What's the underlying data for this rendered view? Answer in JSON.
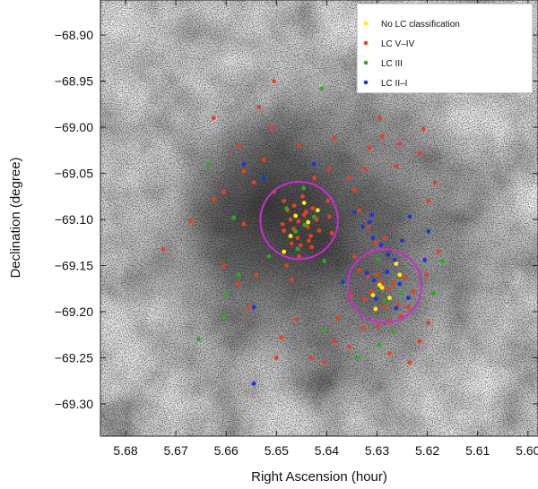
{
  "chart_data": {
    "type": "scatter",
    "xlabel": "Right Ascension (hour)",
    "ylabel": "Declination (degree)",
    "xlim": [
      5.685,
      5.598
    ],
    "ylim": [
      -69.335,
      -68.862
    ],
    "x_ticks": [
      5.68,
      5.67,
      5.66,
      5.65,
      5.64,
      5.63,
      5.62,
      5.61,
      5.6
    ],
    "x_tick_labels": [
      "5.68",
      "5.67",
      "5.66",
      "5.65",
      "5.64",
      "5.63",
      "5.62",
      "5.61",
      "5.60"
    ],
    "y_ticks": [
      -68.9,
      -68.95,
      -69.0,
      -69.05,
      -69.1,
      -69.15,
      -69.2,
      -69.25,
      -69.3
    ],
    "y_tick_labels": [
      "−68.90",
      "−68.95",
      "−69.00",
      "−69.05",
      "−69.10",
      "−69.15",
      "−69.20",
      "−69.25",
      "−69.30"
    ],
    "background": "greyscale nebula image",
    "legend_position": "top-right",
    "series": [
      {
        "name": "No LC classification",
        "color": "#ffee00",
        "points": [
          [
            5.6445,
            -69.082
          ],
          [
            5.6462,
            -69.096
          ],
          [
            5.6472,
            -69.118
          ],
          [
            5.6437,
            -69.103
          ],
          [
            5.6485,
            -69.135
          ],
          [
            5.6295,
            -69.171
          ],
          [
            5.6275,
            -69.185
          ],
          [
            5.6303,
            -69.197
          ],
          [
            5.6262,
            -69.148
          ],
          [
            5.6308,
            -69.182
          ],
          [
            5.6255,
            -69.16
          ],
          [
            5.6418,
            -69.09
          ],
          [
            5.629,
            -69.174
          ]
        ]
      },
      {
        "name": "LC V–IV",
        "color": "#e8401c",
        "points": [
          [
            5.6625,
            -68.99
          ],
          [
            5.6575,
            -69.02
          ],
          [
            5.6535,
            -68.978
          ],
          [
            5.651,
            -69.0
          ],
          [
            5.6455,
            -69.02
          ],
          [
            5.6385,
            -69.012
          ],
          [
            5.6315,
            -69.022
          ],
          [
            5.629,
            -69.01
          ],
          [
            5.6255,
            -69.018
          ],
          [
            5.6215,
            -69.028
          ],
          [
            5.6395,
            -69.045
          ],
          [
            5.6425,
            -69.055
          ],
          [
            5.6525,
            -69.035
          ],
          [
            5.6565,
            -69.048
          ],
          [
            5.6605,
            -69.07
          ],
          [
            5.6625,
            -69.078
          ],
          [
            5.6585,
            -69.098
          ],
          [
            5.6565,
            -69.105
          ],
          [
            5.6545,
            -69.06
          ],
          [
            5.6505,
            -69.07
          ],
          [
            5.6485,
            -69.08
          ],
          [
            5.6478,
            -69.09
          ],
          [
            5.6472,
            -69.1
          ],
          [
            5.6466,
            -69.11
          ],
          [
            5.6458,
            -69.12
          ],
          [
            5.6452,
            -69.128
          ],
          [
            5.6445,
            -69.095
          ],
          [
            5.6438,
            -69.108
          ],
          [
            5.6432,
            -69.118
          ],
          [
            5.6428,
            -69.088
          ],
          [
            5.642,
            -69.1
          ],
          [
            5.6415,
            -69.112
          ],
          [
            5.6448,
            -69.075
          ],
          [
            5.6398,
            -69.08
          ],
          [
            5.6395,
            -69.097
          ],
          [
            5.639,
            -69.115
          ],
          [
            5.6465,
            -69.085
          ],
          [
            5.6488,
            -69.105
          ],
          [
            5.6456,
            -69.102
          ],
          [
            5.6441,
            -69.092
          ],
          [
            5.6436,
            -69.123
          ],
          [
            5.647,
            -69.126
          ],
          [
            5.6485,
            -69.112
          ],
          [
            5.643,
            -69.13
          ],
          [
            5.6455,
            -69.14
          ],
          [
            5.648,
            -69.15
          ],
          [
            5.647,
            -69.165
          ],
          [
            5.6355,
            -69.055
          ],
          [
            5.6345,
            -69.068
          ],
          [
            5.6335,
            -69.09
          ],
          [
            5.6318,
            -69.108
          ],
          [
            5.6302,
            -69.125
          ],
          [
            5.6285,
            -69.12
          ],
          [
            5.6345,
            -69.14
          ],
          [
            5.6335,
            -69.155
          ],
          [
            5.6318,
            -69.162
          ],
          [
            5.63,
            -69.16
          ],
          [
            5.6292,
            -69.168
          ],
          [
            5.6278,
            -69.175
          ],
          [
            5.6268,
            -69.17
          ],
          [
            5.6312,
            -69.178
          ],
          [
            5.6325,
            -69.186
          ],
          [
            5.6285,
            -69.195
          ],
          [
            5.6258,
            -69.192
          ],
          [
            5.6352,
            -69.182
          ],
          [
            5.6378,
            -69.207
          ],
          [
            5.6328,
            -69.218
          ],
          [
            5.6298,
            -69.215
          ],
          [
            5.6275,
            -69.21
          ],
          [
            5.6252,
            -69.205
          ],
          [
            5.6238,
            -69.195
          ],
          [
            5.6228,
            -69.178
          ],
          [
            5.6245,
            -69.163
          ],
          [
            5.667,
            -69.102
          ],
          [
            5.6725,
            -69.132
          ],
          [
            5.654,
            -69.16
          ],
          [
            5.6578,
            -69.17
          ],
          [
            5.6555,
            -69.196
          ],
          [
            5.6605,
            -69.15
          ],
          [
            5.649,
            -69.228
          ],
          [
            5.646,
            -69.208
          ],
          [
            5.65,
            -69.25
          ],
          [
            5.6432,
            -69.25
          ],
          [
            5.6405,
            -69.255
          ],
          [
            5.6385,
            -69.232
          ],
          [
            5.6355,
            -69.238
          ],
          [
            5.6275,
            -69.245
          ],
          [
            5.6215,
            -69.232
          ],
          [
            5.6235,
            -69.255
          ],
          [
            5.6198,
            -69.212
          ],
          [
            5.6202,
            -69.16
          ],
          [
            5.6198,
            -69.08
          ],
          [
            5.6185,
            -69.06
          ],
          [
            5.6325,
            -69.045
          ],
          [
            5.6178,
            -69.135
          ],
          [
            5.6505,
            -68.95
          ],
          [
            5.6295,
            -68.99
          ],
          [
            5.6262,
            -69.042
          ],
          [
            5.6208,
            -69.002
          ]
        ]
      },
      {
        "name": "LC III",
        "color": "#27ae1e",
        "points": [
          [
            5.641,
            -68.958
          ],
          [
            5.6636,
            -69.04
          ],
          [
            5.6585,
            -69.098
          ],
          [
            5.648,
            -69.088
          ],
          [
            5.6458,
            -69.132
          ],
          [
            5.6444,
            -69.106
          ],
          [
            5.6425,
            -69.097
          ],
          [
            5.6405,
            -69.145
          ],
          [
            5.6515,
            -69.14
          ],
          [
            5.6575,
            -69.16
          ],
          [
            5.66,
            -69.181
          ],
          [
            5.6605,
            -69.205
          ],
          [
            5.6655,
            -69.23
          ],
          [
            5.6405,
            -69.22
          ],
          [
            5.6365,
            -69.17
          ],
          [
            5.6298,
            -69.143
          ],
          [
            5.6285,
            -69.188
          ],
          [
            5.6252,
            -69.18
          ],
          [
            5.6188,
            -69.18
          ],
          [
            5.617,
            -69.145
          ],
          [
            5.6268,
            -69.222
          ],
          [
            5.6296,
            -69.236
          ],
          [
            5.6338,
            -69.25
          ],
          [
            5.6446,
            -69.066
          ],
          [
            5.6462,
            -69.113
          ]
        ]
      },
      {
        "name": "LC II–I",
        "color": "#1c35d8",
        "points": [
          [
            5.6565,
            -69.04
          ],
          [
            5.6525,
            -69.055
          ],
          [
            5.6425,
            -69.04
          ],
          [
            5.6345,
            -69.092
          ],
          [
            5.6328,
            -69.108
          ],
          [
            5.631,
            -69.095
          ],
          [
            5.6308,
            -69.12
          ],
          [
            5.6292,
            -69.128
          ],
          [
            5.6278,
            -69.138
          ],
          [
            5.6265,
            -69.144
          ],
          [
            5.625,
            -69.123
          ],
          [
            5.6235,
            -69.097
          ],
          [
            5.6198,
            -69.113
          ],
          [
            5.6205,
            -69.144
          ],
          [
            5.6262,
            -69.196
          ],
          [
            5.6306,
            -69.166
          ],
          [
            5.632,
            -69.158
          ],
          [
            5.628,
            -69.157
          ],
          [
            5.6255,
            -69.17
          ],
          [
            5.6302,
            -69.186
          ],
          [
            5.6238,
            -69.185
          ],
          [
            5.6545,
            -69.195
          ],
          [
            5.6545,
            -69.278
          ],
          [
            5.6315,
            -69.103
          ],
          [
            5.6368,
            -69.168
          ]
        ]
      }
    ],
    "annotations": [
      {
        "shape": "circle",
        "center": [
          5.6455,
          -69.101
        ],
        "radius_deg": 0.042,
        "color": "#cc2bd4"
      },
      {
        "shape": "circle",
        "center": [
          5.6285,
          -69.172
        ],
        "radius_deg": 0.04,
        "color": "#cc2bd4"
      }
    ]
  }
}
